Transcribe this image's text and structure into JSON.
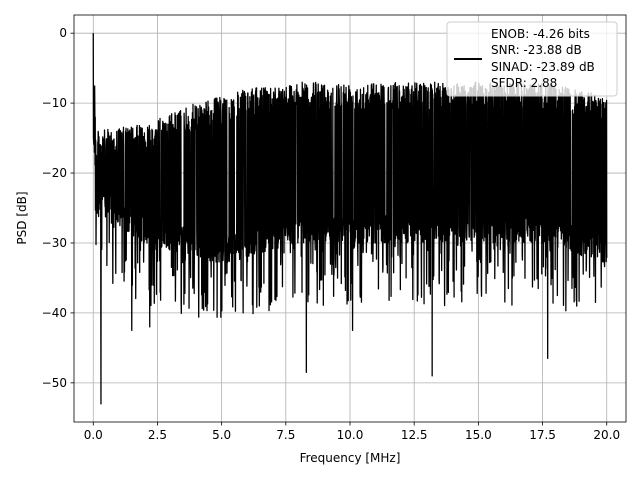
{
  "chart_data": {
    "type": "line",
    "title": "",
    "xlabel": "Frequency [MHz]",
    "ylabel": "PSD [dB]",
    "xlim": [
      -0.75,
      20.75
    ],
    "ylim": [
      -55.6,
      2.6
    ],
    "xticks": [
      0.0,
      2.5,
      5.0,
      7.5,
      10.0,
      12.5,
      15.0,
      17.5,
      20.0
    ],
    "xtick_labels": [
      "0.0",
      "2.5",
      "5.0",
      "7.5",
      "10.0",
      "12.5",
      "15.0",
      "17.5",
      "20.0"
    ],
    "yticks": [
      0,
      -10,
      -20,
      -30,
      -40,
      -50
    ],
    "ytick_labels": [
      "0",
      "−10",
      "−20",
      "−30",
      "−40",
      "−50"
    ],
    "grid": true,
    "legend_position": "top-right",
    "legend_lines": [
      "ENOB: -4.26 bits",
      "SNR: -23.88 dB",
      "SINAD: -23.89 dB",
      "SFDR: 2.88"
    ],
    "series": [
      {
        "color": "#000000",
        "x_range": [
          0.0,
          20.0
        ],
        "description_points": {
          "peak": [
            0.0,
            0.0
          ],
          "minimum": [
            0.3,
            -53.0
          ],
          "notable_dips": [
            [
              8.3,
              -48.5
            ],
            [
              13.2,
              -49.0
            ],
            [
              17.7,
              -46.5
            ],
            [
              10.1,
              -42.5
            ],
            [
              1.5,
              -42.5
            ],
            [
              2.2,
              -42.0
            ]
          ],
          "envelope_upper": [
            [
              0.1,
              -14
            ],
            [
              2.0,
              -13
            ],
            [
              4.0,
              -10
            ],
            [
              6.0,
              -8
            ],
            [
              8.0,
              -7
            ],
            [
              10.0,
              -7
            ],
            [
              12.5,
              -7
            ],
            [
              15.0,
              -7
            ],
            [
              17.5,
              -7
            ],
            [
              20.0,
              -9
            ]
          ],
          "envelope_lower": [
            [
              0.1,
              -26
            ],
            [
              2.0,
              -30
            ],
            [
              5.0,
              -33
            ],
            [
              8.0,
              -30
            ],
            [
              10.0,
              -30
            ],
            [
              12.5,
              -30
            ],
            [
              15.0,
              -30
            ],
            [
              17.5,
              -30
            ],
            [
              20.0,
              -33
            ]
          ]
        }
      }
    ]
  }
}
